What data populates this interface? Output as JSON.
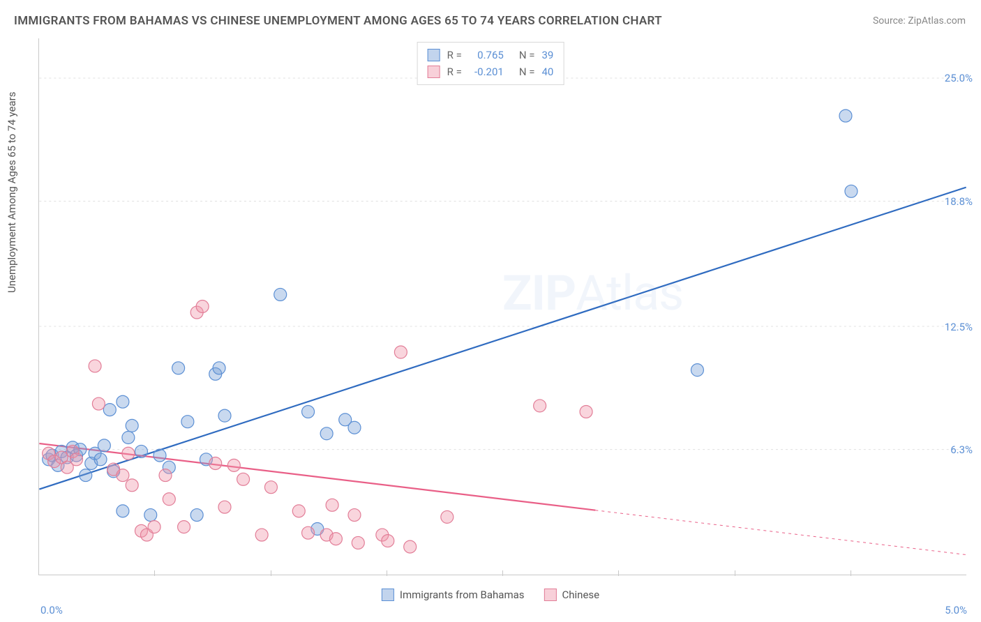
{
  "title": "IMMIGRANTS FROM BAHAMAS VS CHINESE UNEMPLOYMENT AMONG AGES 65 TO 74 YEARS CORRELATION CHART",
  "source": "Source: ZipAtlas.com",
  "y_axis_label": "Unemployment Among Ages 65 to 74 years",
  "watermark_bold": "ZIP",
  "watermark_light": "Atlas",
  "chart": {
    "type": "scatter",
    "xlim": [
      0.0,
      5.0
    ],
    "ylim": [
      0.0,
      27.0
    ],
    "y_ticks": [
      6.3,
      12.5,
      18.8,
      25.0
    ],
    "y_tick_labels": [
      "6.3%",
      "12.5%",
      "18.8%",
      "25.0%"
    ],
    "x_tick_labels": [
      "0.0%",
      "5.0%"
    ],
    "x_minor_ticks": [
      0.625,
      1.25,
      1.875,
      2.5,
      3.125,
      3.75,
      4.375
    ],
    "grid_color": "#e0e0e0",
    "axis_color": "#c8c8c8",
    "background_color": "#ffffff",
    "marker_radius": 9,
    "marker_stroke_width": 1.2,
    "line_width": 2.2,
    "series": [
      {
        "name": "Immigrants from Bahamas",
        "fill_color": "rgba(120,160,215,0.40)",
        "stroke_color": "#5b8fd4",
        "line_color": "#2f6bc0",
        "R": 0.765,
        "N": 39,
        "trend_line": {
          "x1": 0.0,
          "y1": 4.3,
          "x2": 5.0,
          "y2": 19.5,
          "solid_to_x": 5.0
        },
        "points": [
          [
            0.05,
            5.8
          ],
          [
            0.07,
            6.0
          ],
          [
            0.1,
            5.5
          ],
          [
            0.12,
            6.2
          ],
          [
            0.15,
            5.9
          ],
          [
            0.18,
            6.4
          ],
          [
            0.2,
            6.0
          ],
          [
            0.22,
            6.3
          ],
          [
            0.25,
            5.0
          ],
          [
            0.28,
            5.6
          ],
          [
            0.3,
            6.1
          ],
          [
            0.33,
            5.8
          ],
          [
            0.35,
            6.5
          ],
          [
            0.38,
            8.3
          ],
          [
            0.4,
            5.2
          ],
          [
            0.45,
            3.2
          ],
          [
            0.45,
            8.7
          ],
          [
            0.48,
            6.9
          ],
          [
            0.5,
            7.5
          ],
          [
            0.55,
            6.2
          ],
          [
            0.6,
            3.0
          ],
          [
            0.65,
            6.0
          ],
          [
            0.7,
            5.4
          ],
          [
            0.75,
            10.4
          ],
          [
            0.8,
            7.7
          ],
          [
            0.85,
            3.0
          ],
          [
            0.9,
            5.8
          ],
          [
            0.95,
            10.1
          ],
          [
            0.97,
            10.4
          ],
          [
            1.0,
            8.0
          ],
          [
            1.3,
            14.1
          ],
          [
            1.45,
            8.2
          ],
          [
            1.5,
            2.3
          ],
          [
            1.55,
            7.1
          ],
          [
            1.65,
            7.8
          ],
          [
            1.7,
            7.4
          ],
          [
            3.55,
            10.3
          ],
          [
            4.35,
            23.1
          ],
          [
            4.38,
            19.3
          ]
        ]
      },
      {
        "name": "Chinese",
        "fill_color": "rgba(240,150,170,0.40)",
        "stroke_color": "#e27d97",
        "line_color": "#e95f87",
        "R": -0.201,
        "N": 40,
        "trend_line": {
          "x1": 0.0,
          "y1": 6.6,
          "x2": 5.0,
          "y2": 1.0,
          "solid_to_x": 3.0
        },
        "points": [
          [
            0.05,
            6.1
          ],
          [
            0.08,
            5.7
          ],
          [
            0.12,
            5.9
          ],
          [
            0.15,
            5.4
          ],
          [
            0.18,
            6.2
          ],
          [
            0.2,
            5.8
          ],
          [
            0.3,
            10.5
          ],
          [
            0.32,
            8.6
          ],
          [
            0.4,
            5.3
          ],
          [
            0.45,
            5.0
          ],
          [
            0.48,
            6.1
          ],
          [
            0.5,
            4.5
          ],
          [
            0.55,
            2.2
          ],
          [
            0.58,
            2.0
          ],
          [
            0.62,
            2.4
          ],
          [
            0.68,
            5.0
          ],
          [
            0.7,
            3.8
          ],
          [
            0.78,
            2.4
          ],
          [
            0.85,
            13.2
          ],
          [
            0.88,
            13.5
          ],
          [
            0.95,
            5.6
          ],
          [
            1.0,
            3.4
          ],
          [
            1.05,
            5.5
          ],
          [
            1.1,
            4.8
          ],
          [
            1.2,
            2.0
          ],
          [
            1.25,
            4.4
          ],
          [
            1.4,
            3.2
          ],
          [
            1.45,
            2.1
          ],
          [
            1.55,
            2.0
          ],
          [
            1.58,
            3.5
          ],
          [
            1.6,
            1.8
          ],
          [
            1.7,
            3.0
          ],
          [
            1.72,
            1.6
          ],
          [
            1.85,
            2.0
          ],
          [
            1.88,
            1.7
          ],
          [
            1.95,
            11.2
          ],
          [
            2.0,
            1.4
          ],
          [
            2.2,
            2.9
          ],
          [
            2.7,
            8.5
          ],
          [
            2.95,
            8.2
          ]
        ]
      }
    ]
  },
  "legend_top": {
    "rows": [
      {
        "swatch": "blue",
        "R_label": "R =",
        "R_value": "0.765",
        "N_label": "N =",
        "N_value": "39"
      },
      {
        "swatch": "pink",
        "R_label": "R =",
        "R_value": "-0.201",
        "N_label": "N =",
        "N_value": "40"
      }
    ]
  },
  "legend_bottom": {
    "items": [
      {
        "swatch": "blue",
        "label": "Immigrants from Bahamas"
      },
      {
        "swatch": "pink",
        "label": "Chinese"
      }
    ]
  }
}
